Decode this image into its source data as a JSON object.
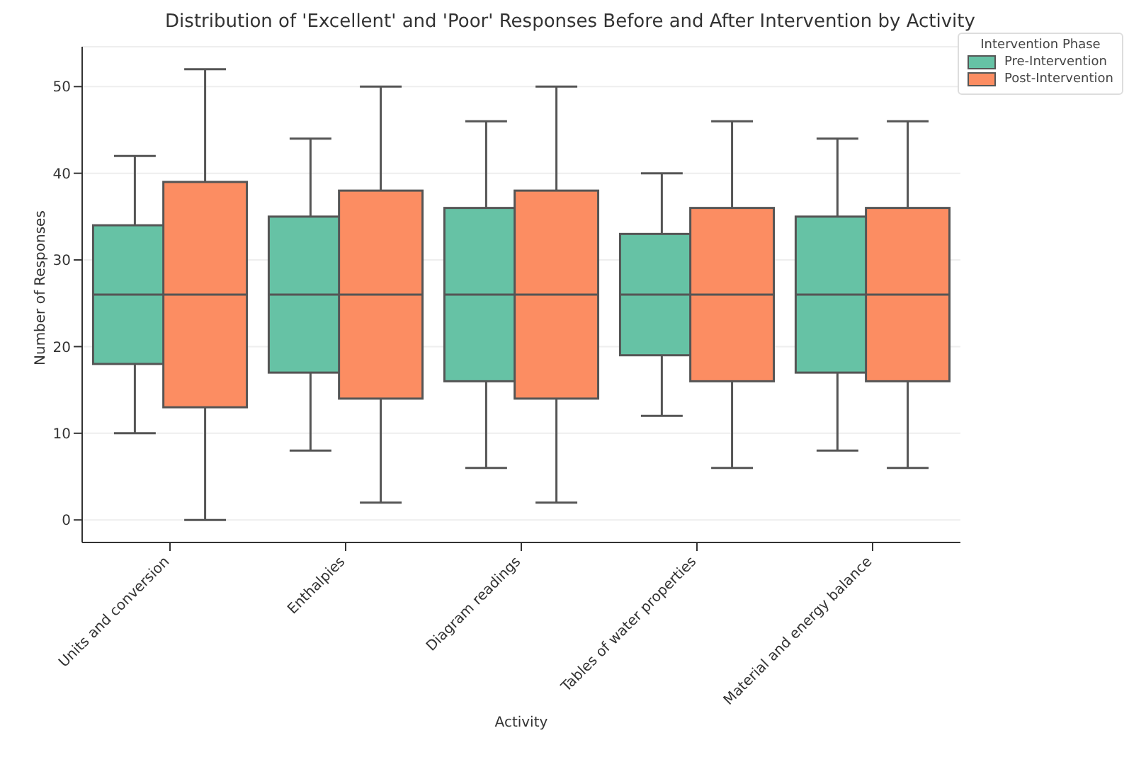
{
  "chart_data": {
    "type": "box",
    "title": "Distribution of 'Excellent' and 'Poor' Responses Before and After Intervention by Activity",
    "xlabel": "Activity",
    "ylabel": "Number of Responses",
    "legend_title": "Intervention Phase",
    "categories": [
      "Units and conversion",
      "Enthalpies",
      "Diagram readings",
      "Tables of water properties",
      "Material and energy balance"
    ],
    "series": [
      {
        "name": "Pre-Intervention",
        "color": "#66c2a5",
        "boxes": [
          {
            "low": 10,
            "q1": 18,
            "median": 26,
            "q3": 34,
            "high": 42
          },
          {
            "low": 8,
            "q1": 17,
            "median": 26,
            "q3": 35,
            "high": 44
          },
          {
            "low": 6,
            "q1": 16,
            "median": 26,
            "q3": 36,
            "high": 46
          },
          {
            "low": 12,
            "q1": 19,
            "median": 26,
            "q3": 33,
            "high": 40
          },
          {
            "low": 8,
            "q1": 17,
            "median": 26,
            "q3": 35,
            "high": 44
          }
        ]
      },
      {
        "name": "Post-Intervention",
        "color": "#fc8d62",
        "boxes": [
          {
            "low": 0,
            "q1": 13,
            "median": 26,
            "q3": 39,
            "high": 52
          },
          {
            "low": 2,
            "q1": 14,
            "median": 26,
            "q3": 38,
            "high": 50
          },
          {
            "low": 2,
            "q1": 14,
            "median": 26,
            "q3": 38,
            "high": 50
          },
          {
            "low": 6,
            "q1": 16,
            "median": 26,
            "q3": 36,
            "high": 46
          },
          {
            "low": 6,
            "q1": 16,
            "median": 26,
            "q3": 36,
            "high": 46
          }
        ]
      }
    ],
    "ylim": [
      -2.6,
      54.6
    ],
    "yticks": [
      0,
      10,
      20,
      30,
      40,
      50
    ],
    "grid": "y",
    "legend": "top right"
  }
}
